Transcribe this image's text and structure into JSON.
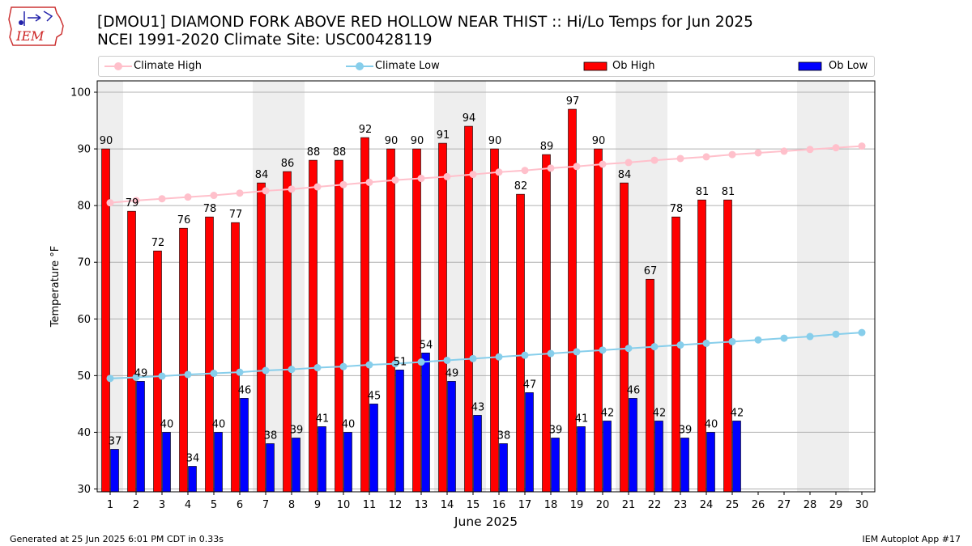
{
  "header": {
    "title_line1": "[DMOU1] DIAMOND FORK ABOVE RED HOLLOW NEAR THIST :: Hi/Lo Temps for Jun 2025",
    "title_line2": "NCEI 1991-2020 Climate Site: USC00428119",
    "logo_text": "IEM"
  },
  "footer": {
    "left": "Generated at 25 Jun 2025 6:01 PM CDT in 0.33s",
    "right": "IEM Autoplot App #17"
  },
  "colors": {
    "climate_high": "#ffc0cb",
    "climate_low": "#87ceeb",
    "ob_high": "#ff0000",
    "ob_low": "#0000ff",
    "weekend_band": "#eeeeee"
  },
  "chart_data": {
    "type": "bar",
    "title": "[DMOU1] DIAMOND FORK ABOVE RED HOLLOW NEAR THIST :: Hi/Lo Temps for Jun 2025",
    "subtitle": "NCEI 1991-2020 Climate Site: USC00428119",
    "xlabel": "June 2025",
    "ylabel": "Temperature °F",
    "ylim": [
      29.5,
      102
    ],
    "yticks": [
      30,
      40,
      50,
      60,
      70,
      80,
      90,
      100
    ],
    "grid": true,
    "legend_position": "top",
    "categories": [
      "1",
      "2",
      "3",
      "4",
      "5",
      "6",
      "7",
      "8",
      "9",
      "10",
      "11",
      "12",
      "13",
      "14",
      "15",
      "16",
      "17",
      "18",
      "19",
      "20",
      "21",
      "22",
      "23",
      "24",
      "25",
      "26",
      "27",
      "28",
      "29",
      "30"
    ],
    "weekend_bands": [
      [
        1,
        1
      ],
      [
        7,
        8
      ],
      [
        14,
        15
      ],
      [
        21,
        22
      ],
      [
        28,
        29
      ]
    ],
    "series": [
      {
        "name": "Climate High",
        "kind": "line",
        "color": "#ffc0cb",
        "values": [
          80.5,
          80.9,
          81.2,
          81.5,
          81.8,
          82.2,
          82.6,
          82.9,
          83.3,
          83.7,
          84.1,
          84.5,
          84.8,
          85.1,
          85.5,
          85.9,
          86.2,
          86.6,
          86.9,
          87.3,
          87.6,
          88.0,
          88.3,
          88.6,
          89.0,
          89.3,
          89.6,
          89.9,
          90.2,
          90.5
        ]
      },
      {
        "name": "Climate Low",
        "kind": "line",
        "color": "#87ceeb",
        "values": [
          49.5,
          49.7,
          49.9,
          50.2,
          50.4,
          50.6,
          50.9,
          51.1,
          51.4,
          51.6,
          51.9,
          52.1,
          52.4,
          52.7,
          53.0,
          53.3,
          53.6,
          53.9,
          54.2,
          54.5,
          54.8,
          55.1,
          55.4,
          55.7,
          56.0,
          56.3,
          56.6,
          56.9,
          57.3,
          57.6
        ]
      },
      {
        "name": "Ob High",
        "kind": "bar",
        "color": "#ff0000",
        "values": [
          90,
          79,
          72,
          76,
          78,
          77,
          84,
          86,
          88,
          88,
          92,
          90,
          90,
          91,
          94,
          90,
          82,
          89,
          97,
          90,
          84,
          67,
          78,
          81,
          81,
          null,
          null,
          null,
          null,
          null
        ],
        "labels": [
          "90",
          "79",
          "72",
          "76",
          "78",
          "77",
          "84",
          "86",
          "88",
          "88",
          "92",
          "90",
          "90",
          "91",
          "94",
          "90",
          "82",
          "89",
          "97",
          "90",
          "84",
          "67",
          "78",
          "81",
          "81",
          "",
          "",
          "",
          "",
          ""
        ]
      },
      {
        "name": "Ob Low",
        "kind": "bar",
        "color": "#0000ff",
        "values": [
          37,
          49,
          40,
          34,
          40,
          46,
          38,
          39,
          41,
          40,
          45,
          51,
          54,
          49,
          43,
          38,
          47,
          39,
          41,
          42,
          46,
          42,
          39,
          40,
          42,
          null,
          null,
          null,
          null,
          null
        ],
        "labels": [
          "37",
          "49",
          "40",
          "34",
          "40",
          "46",
          "38",
          "39",
          "41",
          "40",
          "45",
          "51",
          "54",
          "49",
          "43",
          "38",
          "47",
          "39",
          "41",
          "42",
          "46",
          "42",
          "39",
          "40",
          "42",
          "",
          "",
          "",
          "",
          ""
        ]
      }
    ]
  }
}
